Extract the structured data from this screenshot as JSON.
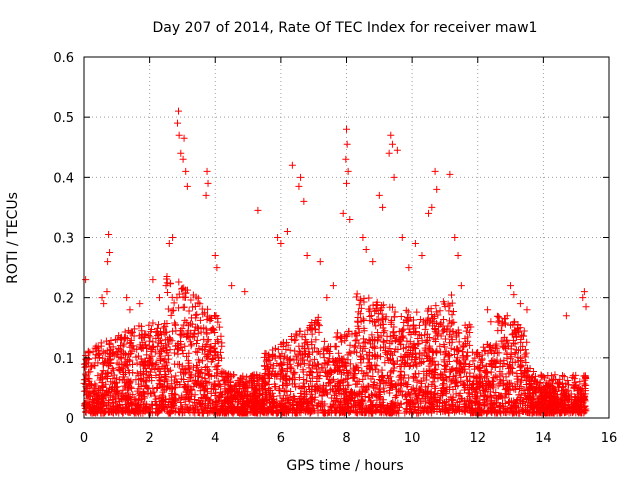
{
  "chart_data": {
    "type": "scatter",
    "title": "Day 207 of 2014, Rate Of TEC Index for receiver maw1",
    "xlabel": "GPS time / hours",
    "ylabel": "ROTI / TECUs",
    "xlim": [
      0,
      16
    ],
    "ylim": [
      0,
      0.6
    ],
    "xticks": [
      0,
      2,
      4,
      6,
      8,
      10,
      12,
      14,
      16
    ],
    "yticks": [
      0,
      0.1,
      0.2,
      0.3,
      0.4,
      0.5,
      0.6
    ],
    "ytick_labels": [
      "0",
      "0.1",
      "0.2",
      "0.3",
      "0.4",
      "0.5",
      "0.6"
    ],
    "grid": true,
    "marker": "+",
    "color": "#ff0000",
    "x_range_of_data": [
      0,
      15.3
    ],
    "series": [
      {
        "name": "ROTI",
        "points": [
          [
            2.88,
            0.51
          ],
          [
            2.85,
            0.49
          ],
          [
            2.9,
            0.47
          ],
          [
            2.95,
            0.44
          ],
          [
            3.05,
            0.465
          ],
          [
            3.02,
            0.43
          ],
          [
            3.1,
            0.41
          ],
          [
            3.15,
            0.385
          ],
          [
            3.75,
            0.41
          ],
          [
            3.78,
            0.39
          ],
          [
            3.72,
            0.37
          ],
          [
            8.0,
            0.48
          ],
          [
            8.02,
            0.455
          ],
          [
            7.98,
            0.43
          ],
          [
            8.05,
            0.41
          ],
          [
            8.0,
            0.39
          ],
          [
            9.35,
            0.47
          ],
          [
            9.4,
            0.455
          ],
          [
            9.55,
            0.445
          ],
          [
            9.3,
            0.44
          ],
          [
            9.45,
            0.4
          ],
          [
            10.7,
            0.41
          ],
          [
            10.75,
            0.38
          ],
          [
            11.15,
            0.405
          ],
          [
            6.35,
            0.42
          ],
          [
            6.6,
            0.4
          ],
          [
            6.55,
            0.385
          ],
          [
            6.7,
            0.36
          ],
          [
            5.3,
            0.345
          ],
          [
            7.9,
            0.34
          ],
          [
            8.1,
            0.33
          ],
          [
            9.0,
            0.37
          ],
          [
            9.1,
            0.35
          ],
          [
            10.6,
            0.35
          ],
          [
            10.5,
            0.34
          ],
          [
            0.75,
            0.305
          ],
          [
            0.78,
            0.275
          ],
          [
            0.72,
            0.26
          ],
          [
            0.7,
            0.21
          ],
          [
            0.05,
            0.23
          ],
          [
            0.55,
            0.2
          ],
          [
            0.6,
            0.19
          ],
          [
            15.25,
            0.21
          ],
          [
            15.2,
            0.2
          ],
          [
            15.3,
            0.185
          ],
          [
            14.7,
            0.17
          ],
          [
            13.0,
            0.22
          ],
          [
            13.1,
            0.205
          ],
          [
            13.3,
            0.19
          ],
          [
            13.5,
            0.18
          ],
          [
            12.9,
            0.17
          ],
          [
            11.3,
            0.3
          ],
          [
            11.4,
            0.27
          ],
          [
            11.5,
            0.22
          ],
          [
            12.3,
            0.18
          ],
          [
            12.4,
            0.16
          ],
          [
            4.0,
            0.27
          ],
          [
            4.05,
            0.25
          ],
          [
            4.5,
            0.22
          ],
          [
            4.9,
            0.21
          ],
          [
            5.9,
            0.3
          ],
          [
            6.0,
            0.29
          ],
          [
            6.2,
            0.31
          ],
          [
            6.8,
            0.27
          ],
          [
            7.2,
            0.26
          ],
          [
            7.4,
            0.2
          ],
          [
            7.6,
            0.22
          ],
          [
            8.5,
            0.3
          ],
          [
            8.6,
            0.28
          ],
          [
            8.8,
            0.26
          ],
          [
            9.7,
            0.3
          ],
          [
            9.9,
            0.25
          ],
          [
            10.1,
            0.29
          ],
          [
            10.3,
            0.27
          ],
          [
            1.3,
            0.2
          ],
          [
            1.4,
            0.18
          ],
          [
            1.7,
            0.19
          ],
          [
            2.1,
            0.23
          ],
          [
            2.3,
            0.2
          ],
          [
            2.5,
            0.22
          ],
          [
            2.6,
            0.29
          ],
          [
            2.7,
            0.3
          ]
        ]
      }
    ]
  }
}
